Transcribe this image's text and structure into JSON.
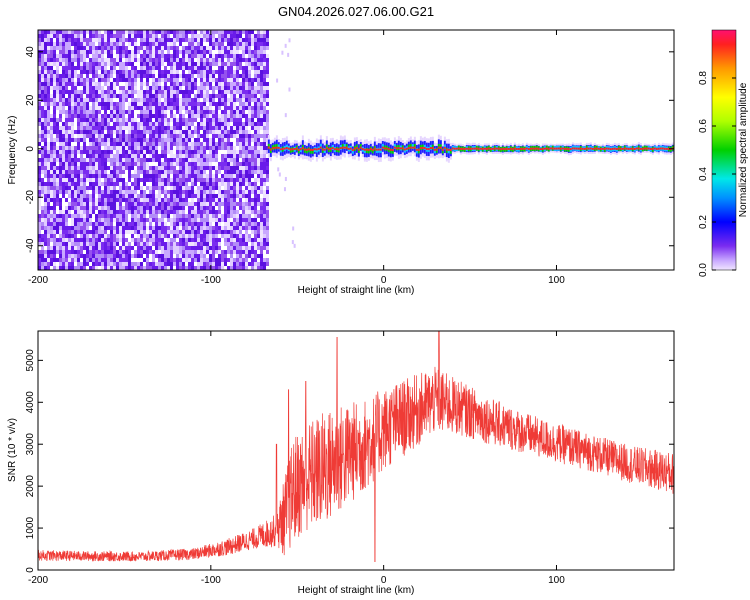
{
  "figure": {
    "title": "GN04.2026.027.06.00.G21"
  },
  "colors": {
    "snr_line": "#ef3b36",
    "axis": "#000000",
    "trace_core": "#ff2020"
  },
  "chart_data": [
    {
      "type": "heatmap",
      "name": "spectrogram",
      "xlabel": "Height of straight line (km)",
      "ylabel": "Frequency (Hz)",
      "xlim": [
        -200,
        168
      ],
      "ylim": [
        -50,
        49
      ],
      "xticks": [
        -200,
        -100,
        0,
        100
      ],
      "yticks": [
        -40,
        -20,
        0,
        20,
        40
      ],
      "noise_region_x": [
        -200,
        -67
      ],
      "signal_region_x": [
        -67,
        168
      ],
      "signal_frequency": 0,
      "colorbar": {
        "label": "Normalized spectral amplitude",
        "range": [
          0,
          1
        ],
        "ticks": [
          0.0,
          0.2,
          0.4,
          0.6,
          0.8
        ]
      }
    },
    {
      "type": "line",
      "name": "snr",
      "xlabel": "Height of straight line (km)",
      "ylabel": "SNR (10 * v/v)",
      "xlim": [
        -200,
        168
      ],
      "ylim": [
        0,
        5700
      ],
      "xticks": [
        -200,
        -100,
        0,
        100
      ],
      "yticks": [
        0,
        1000,
        2000,
        3000,
        4000,
        5000
      ],
      "envelope": [
        {
          "x": -200,
          "mean": 350,
          "spread": 130
        },
        {
          "x": -170,
          "mean": 330,
          "spread": 120
        },
        {
          "x": -140,
          "mean": 320,
          "spread": 120
        },
        {
          "x": -110,
          "mean": 380,
          "spread": 140
        },
        {
          "x": -90,
          "mean": 550,
          "spread": 200
        },
        {
          "x": -75,
          "mean": 750,
          "spread": 250
        },
        {
          "x": -62,
          "mean": 950,
          "spread": 400
        },
        {
          "x": -57,
          "mean": 1300,
          "spread": 1000
        },
        {
          "x": -52,
          "mean": 1900,
          "spread": 1300
        },
        {
          "x": -45,
          "mean": 2200,
          "spread": 1300
        },
        {
          "x": -35,
          "mean": 2400,
          "spread": 1400
        },
        {
          "x": -25,
          "mean": 2650,
          "spread": 1300
        },
        {
          "x": -10,
          "mean": 3000,
          "spread": 1100
        },
        {
          "x": 0,
          "mean": 3350,
          "spread": 1000
        },
        {
          "x": 15,
          "mean": 3700,
          "spread": 900
        },
        {
          "x": 30,
          "mean": 4050,
          "spread": 800
        },
        {
          "x": 45,
          "mean": 3850,
          "spread": 650
        },
        {
          "x": 65,
          "mean": 3500,
          "spread": 550
        },
        {
          "x": 90,
          "mean": 3150,
          "spread": 480
        },
        {
          "x": 120,
          "mean": 2800,
          "spread": 450
        },
        {
          "x": 145,
          "mean": 2500,
          "spread": 450
        },
        {
          "x": 168,
          "mean": 2300,
          "spread": 500
        }
      ],
      "spikes": [
        {
          "x": -62,
          "y": 3000
        },
        {
          "x": -55,
          "y": 4300
        },
        {
          "x": -45,
          "y": 4500
        },
        {
          "x": -27,
          "y": 5550
        },
        {
          "x": 32,
          "y": 5700
        },
        {
          "x": -5,
          "y": 200
        }
      ]
    }
  ]
}
